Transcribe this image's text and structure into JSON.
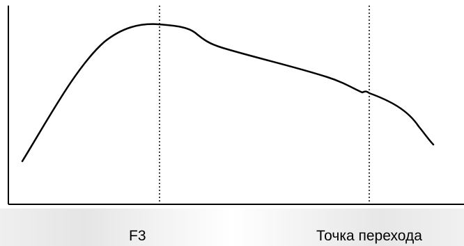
{
  "labels": {
    "f3": "F3",
    "transition_point": "Точка перехода"
  },
  "colors": {
    "line": "#000000",
    "background": "#ffffff"
  }
}
